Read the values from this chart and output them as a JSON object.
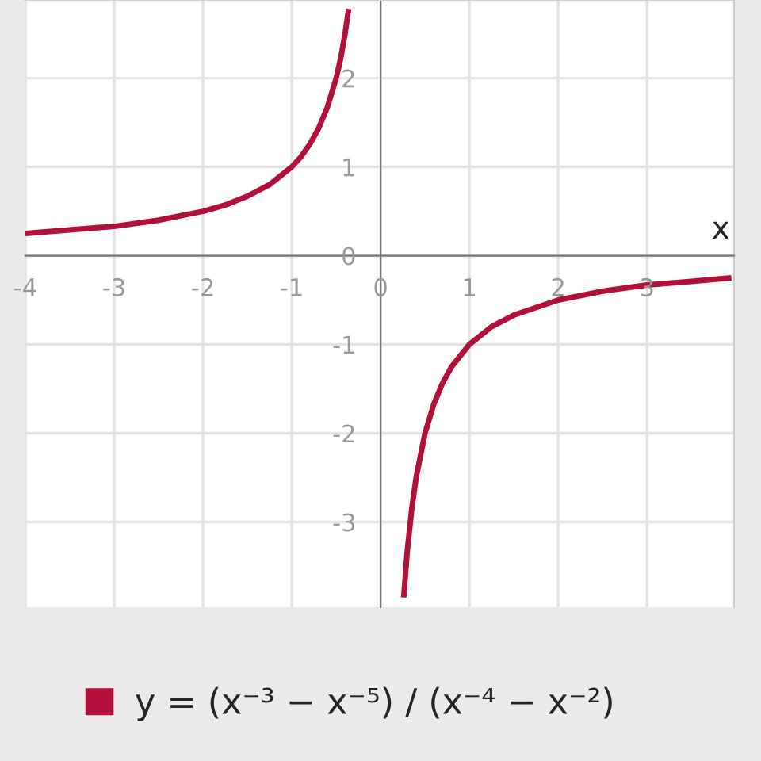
{
  "chart_data": {
    "type": "line",
    "xlabel": "x",
    "x": [
      -4,
      -3.5,
      -3,
      -2.5,
      -2,
      -1.75,
      -1.5,
      -1.25,
      -1,
      -0.9,
      -0.8,
      -0.7,
      -0.6,
      -0.5,
      -0.45,
      -0.4,
      -0.36,
      null,
      0.26,
      0.3,
      0.35,
      0.4,
      0.5,
      0.6,
      0.7,
      0.8,
      1,
      1.25,
      1.5,
      2,
      2.5,
      3,
      3.5,
      3.95
    ],
    "series": [
      {
        "name": "y = (x⁻³ − x⁻⁵) / (x⁻⁴ − x⁻²)",
        "color": "#b0103a",
        "values": [
          0.25,
          0.29,
          0.33,
          0.4,
          0.5,
          0.57,
          0.67,
          0.8,
          1,
          1.11,
          1.25,
          1.43,
          1.67,
          2,
          2.22,
          2.5,
          2.78,
          null,
          -3.85,
          -3.33,
          -2.86,
          -2.5,
          -2,
          -1.67,
          -1.43,
          -1.25,
          -1,
          -0.8,
          -0.67,
          -0.5,
          -0.4,
          -0.33,
          -0.29,
          -0.25
        ]
      }
    ],
    "xlim": [
      -4,
      3.98
    ],
    "ylim": [
      -3.96,
      2.88
    ],
    "xticks": [
      -4,
      -3,
      -2,
      -1,
      0,
      1,
      2,
      3
    ],
    "yticks": [
      -3,
      -2,
      -1,
      0,
      1,
      2
    ],
    "grid": true,
    "legend": "bottom left",
    "marker": "none",
    "line_style": "solid"
  }
}
